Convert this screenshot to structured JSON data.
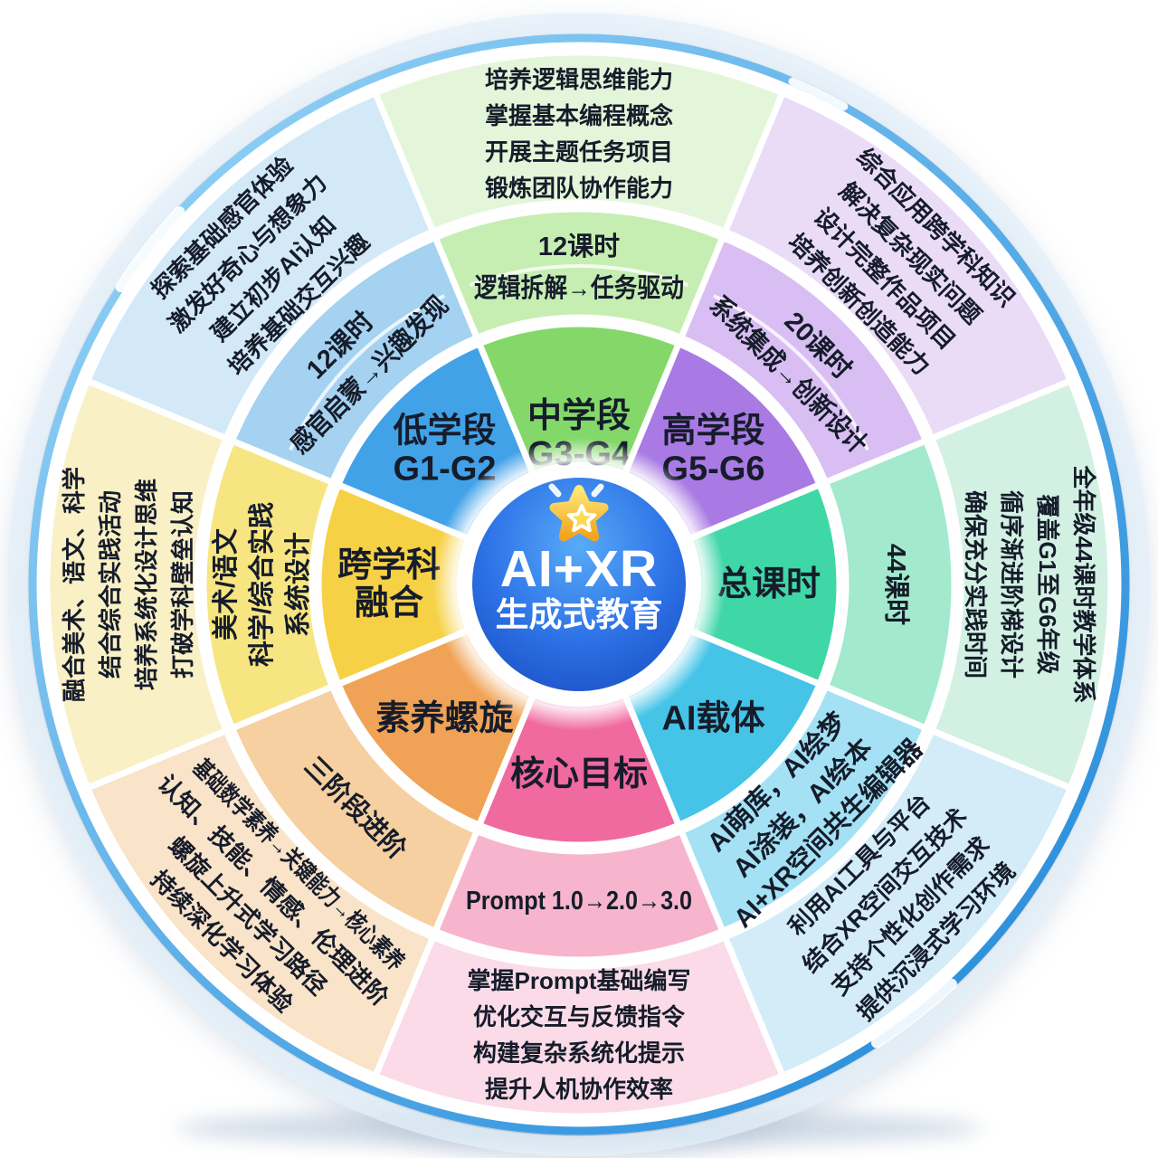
{
  "center": {
    "line1": "AI+XR",
    "line2": "生成式教育",
    "icon": "star-icon",
    "gradient": [
      "#58abf7",
      "#2e73e7",
      "#1a4fc4"
    ],
    "star_gradient": [
      "#ffe878",
      "#f2a41d"
    ],
    "text_color": "#ffffff"
  },
  "text_color": "#141c2a",
  "rim": {
    "gradient": [
      "#9bd7f8",
      "#1d86d8"
    ]
  },
  "segments": [
    {
      "name": "mid-grade",
      "label_lines": [
        "中学段",
        "G3-G4"
      ],
      "middle_lines": [
        "12课时",
        "逻辑拆解→任务驱动"
      ],
      "outer_lines": [
        "培养逻辑思维能力",
        "掌握基本编程概念",
        "开展主题任务项目",
        "锻炼团队协作能力"
      ],
      "colors": {
        "inner": "#83d869",
        "middle": "#c6eeb2",
        "outer": "#e4f6da"
      },
      "sub_divider": true
    },
    {
      "name": "high-grade",
      "label_lines": [
        "高学段",
        "G5-G6"
      ],
      "middle_lines": [
        "20课时",
        "系统集成→创新设计"
      ],
      "outer_lines": [
        "综合应用跨学科知识",
        "解决复杂现实问题",
        "设计完整作品项目",
        "培养创新创造能力"
      ],
      "colors": {
        "inner": "#a97ae4",
        "middle": "#d8bef2",
        "outer": "#eadcf7"
      },
      "sub_divider": true
    },
    {
      "name": "total-hours",
      "label_lines": [
        "总课时"
      ],
      "middle_lines": [
        "44课时"
      ],
      "outer_lines": [
        "全年级44课时教学体系",
        "覆盖G1至G6年级",
        "循序渐进阶梯设计",
        "确保充分实践时间"
      ],
      "colors": {
        "inner": "#3fd7a7",
        "middle": "#a2e9ce",
        "outer": "#d3f1e3"
      }
    },
    {
      "name": "ai-carrier",
      "label_lines": [
        "AI载体"
      ],
      "middle_lines": [
        "AI萌库，AI绘梦",
        "AI涂装，AI绘本",
        "AI+XR空间共生编辑器"
      ],
      "outer_lines": [
        "利用AI工具与平台",
        "结合XR空间交互技术",
        "支持个性化创作需求",
        "提供沉浸式学习环境"
      ],
      "colors": {
        "inner": "#45c4e8",
        "middle": "#a4e1f5",
        "outer": "#d4ecf8"
      }
    },
    {
      "name": "core-goal",
      "label_lines": [
        "核心目标"
      ],
      "middle_lines": [
        "Prompt 1.0→2.0→3.0"
      ],
      "outer_lines": [
        "掌握Prompt基础编写",
        "优化交互与反馈指令",
        "构建复杂系统化提示",
        "提升人机协作效率"
      ],
      "colors": {
        "inner": "#f0699f",
        "middle": "#f7b5cd",
        "outer": "#fadbe7"
      }
    },
    {
      "name": "literacy-spiral",
      "label_lines": [
        "素养螺旋"
      ],
      "middle_lines": [
        "三阶段进阶"
      ],
      "outer_lines": [
        "基础数学素养→关键能力→核心素养",
        "认知、技能、情感、伦理进阶",
        "螺旋上升式学习路径",
        "持续深化学习体验"
      ],
      "colors": {
        "inner": "#f0a357",
        "middle": "#f6d0a0",
        "outer": "#f9e3c9"
      }
    },
    {
      "name": "interdisciplinary",
      "label_lines": [
        "跨学科",
        "融合"
      ],
      "middle_lines": [
        "美术/语文",
        "科学/综合实践",
        "系统设计"
      ],
      "outer_lines": [
        "融合美术、语文、科学",
        "结合综合实践活动",
        "培养系统化设计思维",
        "打破学科壁垒认知"
      ],
      "colors": {
        "inner": "#f6d144",
        "middle": "#f7e582",
        "outer": "#f9f0c5"
      }
    },
    {
      "name": "low-grade",
      "label_lines": [
        "低学段",
        "G1-G2"
      ],
      "middle_lines": [
        "12课时",
        "感官启蒙→兴趣发现"
      ],
      "outer_lines": [
        "探索基础感官体验",
        "激发好奇心与想象力",
        "建立初步AI认知",
        "培养基础交互兴趣"
      ],
      "colors": {
        "inner": "#42a2e8",
        "middle": "#a4d2f0",
        "outer": "#d4e9f7"
      },
      "sub_divider": true
    }
  ]
}
